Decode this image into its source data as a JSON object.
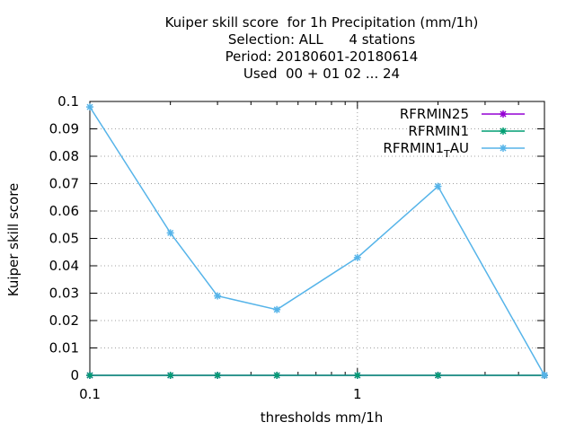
{
  "chart_data": {
    "type": "line",
    "title": [
      "Kuiper skill score  for 1h Precipitation (mm/1h)",
      "Selection: ALL      4 stations",
      "Period: 20180601-20180614",
      "Used  00 + 01 02 ... 24"
    ],
    "xlabel": "thresholds mm/1h",
    "ylabel": "Kuiper skill score",
    "x_scale": "log",
    "xlim": [
      0.1,
      5
    ],
    "ylim": [
      0,
      0.1
    ],
    "x_ticks": [
      0.1,
      1
    ],
    "x_tick_labels": [
      "0.1",
      "1"
    ],
    "y_ticks": [
      0,
      0.01,
      0.02,
      0.03,
      0.04,
      0.05,
      0.06,
      0.07,
      0.08,
      0.09,
      0.1
    ],
    "y_tick_labels": [
      "0",
      "0.01",
      "0.02",
      "0.03",
      "0.04",
      "0.05",
      "0.06",
      "0.07",
      "0.08",
      "0.09",
      "0.1"
    ],
    "grid": true,
    "legend_position": "top-right",
    "x": [
      0.1,
      0.2,
      0.3,
      0.5,
      1,
      2,
      5
    ],
    "series": [
      {
        "name": "RFRMIN25",
        "color": "#9400d3",
        "values": [
          0,
          0,
          0,
          0,
          0,
          0,
          0
        ]
      },
      {
        "name": "RFRMIN1",
        "color": "#009e73",
        "values": [
          0,
          0,
          0,
          0,
          0,
          0,
          0
        ]
      },
      {
        "name": "RFRMIN1_TAU",
        "legend_main": "RFRMIN1",
        "legend_sub": "T",
        "legend_tail": "AU",
        "color": "#56b4e9",
        "values": [
          0.098,
          0.052,
          0.029,
          0.024,
          0.043,
          0.069,
          0
        ]
      }
    ]
  }
}
